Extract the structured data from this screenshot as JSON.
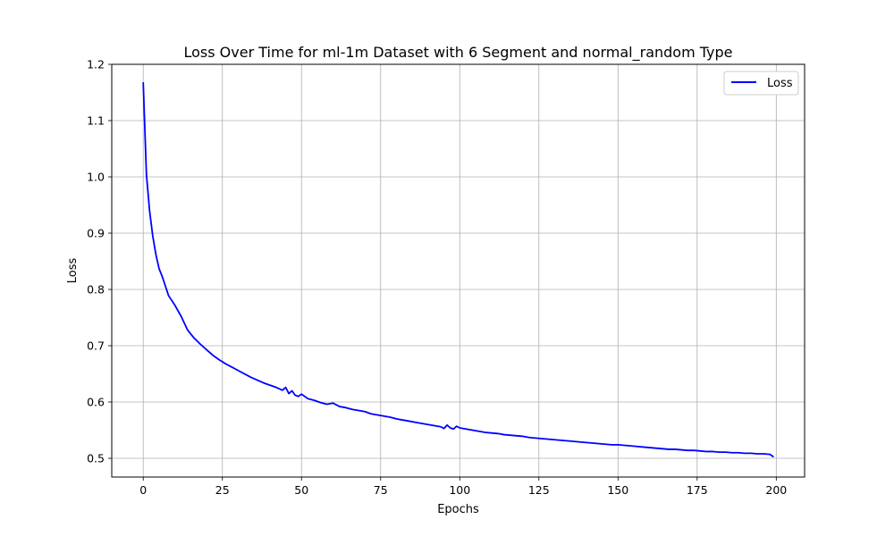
{
  "chart_data": {
    "type": "line",
    "title": "Loss Over Time for ml-1m Dataset with 6 Segment and normal_random Type",
    "xlabel": "Epochs",
    "ylabel": "Loss",
    "xlim": [
      -9.95,
      208.95
    ],
    "ylim": [
      0.4667,
      1.2
    ],
    "xticks": [
      0,
      25,
      50,
      75,
      100,
      125,
      150,
      175,
      200
    ],
    "yticks": [
      0.5,
      0.6,
      0.7,
      0.8,
      0.9,
      1.0,
      1.1,
      1.2
    ],
    "xtick_labels": [
      "0",
      "25",
      "50",
      "75",
      "100",
      "125",
      "150",
      "175",
      "200"
    ],
    "ytick_labels": [
      "0.5",
      "0.6",
      "0.7",
      "0.8",
      "0.9",
      "1.0",
      "1.1",
      "1.2"
    ],
    "grid": true,
    "legend_position": "top-right",
    "series": [
      {
        "name": "Loss",
        "color": "#0000ff",
        "x": [
          0,
          1,
          2,
          3,
          4,
          5,
          6,
          7,
          8,
          10,
          12,
          14,
          16,
          18,
          20,
          22,
          24,
          26,
          28,
          30,
          32,
          34,
          36,
          38,
          40,
          42,
          44,
          45,
          46,
          47,
          48,
          49,
          50,
          52,
          54,
          56,
          58,
          60,
          62,
          64,
          66,
          68,
          70,
          72,
          74,
          76,
          78,
          80,
          82,
          84,
          86,
          88,
          90,
          92,
          94,
          95,
          96,
          97,
          98,
          99,
          100,
          102,
          104,
          106,
          108,
          110,
          112,
          114,
          116,
          118,
          120,
          122,
          124,
          126,
          128,
          130,
          132,
          134,
          136,
          138,
          140,
          142,
          144,
          146,
          148,
          150,
          152,
          154,
          156,
          158,
          160,
          162,
          164,
          166,
          168,
          170,
          172,
          174,
          176,
          178,
          180,
          182,
          184,
          186,
          188,
          190,
          192,
          194,
          196,
          198,
          199
        ],
        "values": [
          1.167,
          1.005,
          0.94,
          0.895,
          0.862,
          0.837,
          0.823,
          0.806,
          0.789,
          0.772,
          0.752,
          0.728,
          0.714,
          0.703,
          0.693,
          0.683,
          0.675,
          0.668,
          0.662,
          0.656,
          0.65,
          0.644,
          0.639,
          0.634,
          0.63,
          0.626,
          0.621,
          0.626,
          0.615,
          0.62,
          0.612,
          0.61,
          0.614,
          0.606,
          0.603,
          0.599,
          0.596,
          0.598,
          0.592,
          0.59,
          0.587,
          0.585,
          0.583,
          0.579,
          0.577,
          0.575,
          0.573,
          0.57,
          0.568,
          0.566,
          0.564,
          0.562,
          0.56,
          0.558,
          0.556,
          0.553,
          0.559,
          0.554,
          0.552,
          0.557,
          0.554,
          0.552,
          0.55,
          0.548,
          0.546,
          0.545,
          0.544,
          0.542,
          0.541,
          0.54,
          0.539,
          0.537,
          0.536,
          0.535,
          0.534,
          0.533,
          0.532,
          0.531,
          0.53,
          0.529,
          0.528,
          0.527,
          0.526,
          0.525,
          0.524,
          0.524,
          0.523,
          0.522,
          0.521,
          0.52,
          0.519,
          0.518,
          0.517,
          0.516,
          0.516,
          0.515,
          0.514,
          0.514,
          0.513,
          0.512,
          0.512,
          0.511,
          0.511,
          0.51,
          0.51,
          0.509,
          0.509,
          0.508,
          0.508,
          0.507,
          0.503
        ]
      }
    ]
  }
}
